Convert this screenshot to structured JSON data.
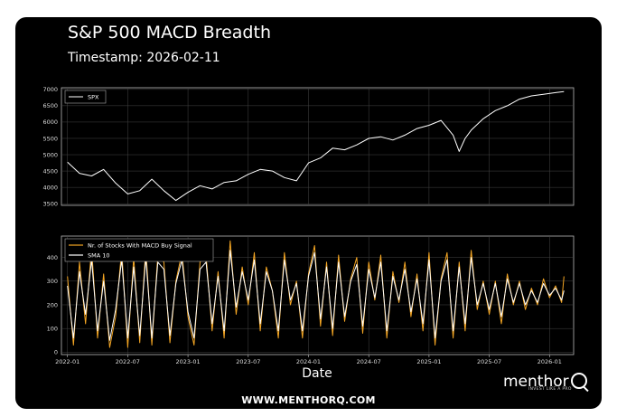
{
  "header": {
    "title": "S&P 500 MACD Breadth",
    "subtitle": "Timestamp: 2026-02-11"
  },
  "footer": {
    "url": "WWW.MENTHORQ.COM",
    "logo_text": "menthor",
    "tagline": "INVEST LIKE A PRO"
  },
  "colors": {
    "background": "#000000",
    "spx": "#ffffff",
    "signal": "#f5a623",
    "sma": "#ffffff",
    "grid": "#555555"
  },
  "chart_data": [
    {
      "type": "line",
      "title": "",
      "xlabel": "",
      "ylabel": "",
      "ylim": [
        3450,
        7050
      ],
      "yticks": [
        "3500",
        "4000",
        "4500",
        "5000",
        "5500",
        "6000",
        "6500",
        "7000"
      ],
      "legend": [
        "SPX"
      ],
      "legend_position": "top-left",
      "grid": true,
      "x": [
        2022.0,
        2022.1,
        2022.2,
        2022.3,
        2022.4,
        2022.5,
        2022.6,
        2022.7,
        2022.8,
        2022.9,
        2023.0,
        2023.1,
        2023.2,
        2023.3,
        2023.4,
        2023.5,
        2023.6,
        2023.7,
        2023.8,
        2023.9,
        2024.0,
        2024.1,
        2024.2,
        2024.3,
        2024.4,
        2024.5,
        2024.6,
        2024.7,
        2024.8,
        2024.9,
        2025.0,
        2025.1,
        2025.2,
        2025.25,
        2025.3,
        2025.35,
        2025.45,
        2025.55,
        2025.65,
        2025.75,
        2025.85,
        2025.95,
        2026.05,
        2026.12
      ],
      "series": [
        {
          "name": "SPX",
          "values": [
            4770,
            4430,
            4350,
            4550,
            4130,
            3800,
            3900,
            4250,
            3900,
            3600,
            3850,
            4050,
            3950,
            4150,
            4200,
            4400,
            4550,
            4500,
            4300,
            4200,
            4750,
            4900,
            5200,
            5150,
            5300,
            5500,
            5550,
            5450,
            5600,
            5800,
            5900,
            6050,
            5600,
            5100,
            5500,
            5750,
            6100,
            6350,
            6500,
            6700,
            6800,
            6850,
            6900,
            6930
          ]
        }
      ]
    },
    {
      "type": "line",
      "title": "",
      "xlabel": "Date",
      "ylabel": "",
      "ylim": [
        -10,
        490
      ],
      "yticks": [
        "0",
        "100",
        "200",
        "300",
        "400"
      ],
      "xticks": [
        "2022-01",
        "2022-07",
        "2023-01",
        "2023-07",
        "2024-01",
        "2024-07",
        "2025-01",
        "2025-07",
        "2026-01"
      ],
      "legend": [
        "Nr. of Stocks With MACD Buy Signal",
        "SMA 10"
      ],
      "legend_position": "top-left",
      "grid": true,
      "x": [
        2022.0,
        2022.05,
        2022.1,
        2022.15,
        2022.2,
        2022.25,
        2022.3,
        2022.35,
        2022.4,
        2022.45,
        2022.5,
        2022.55,
        2022.6,
        2022.65,
        2022.7,
        2022.75,
        2022.8,
        2022.85,
        2022.9,
        2022.95,
        2023.0,
        2023.05,
        2023.1,
        2023.15,
        2023.2,
        2023.25,
        2023.3,
        2023.35,
        2023.4,
        2023.45,
        2023.5,
        2023.55,
        2023.6,
        2023.65,
        2023.7,
        2023.75,
        2023.8,
        2023.85,
        2023.9,
        2023.95,
        2024.0,
        2024.05,
        2024.1,
        2024.15,
        2024.2,
        2024.25,
        2024.3,
        2024.35,
        2024.4,
        2024.45,
        2024.5,
        2024.55,
        2024.6,
        2024.65,
        2024.7,
        2024.75,
        2024.8,
        2024.85,
        2024.9,
        2024.95,
        2025.0,
        2025.05,
        2025.1,
        2025.15,
        2025.2,
        2025.25,
        2025.3,
        2025.35,
        2025.4,
        2025.45,
        2025.5,
        2025.55,
        2025.6,
        2025.65,
        2025.7,
        2025.75,
        2025.8,
        2025.85,
        2025.9,
        2025.95,
        2026.0,
        2026.05,
        2026.1,
        2026.12
      ],
      "series": [
        {
          "name": "Nr. of Stocks With MACD Buy Signal",
          "values": [
            320,
            30,
            380,
            120,
            440,
            60,
            330,
            20,
            150,
            430,
            20,
            400,
            40,
            440,
            30,
            410,
            380,
            40,
            300,
            420,
            150,
            30,
            380,
            410,
            90,
            340,
            60,
            470,
            160,
            360,
            200,
            420,
            90,
            360,
            260,
            60,
            420,
            200,
            300,
            60,
            330,
            450,
            110,
            380,
            70,
            410,
            130,
            310,
            400,
            80,
            380,
            220,
            410,
            60,
            340,
            210,
            380,
            150,
            330,
            90,
            420,
            30,
            310,
            420,
            60,
            380,
            90,
            430,
            180,
            300,
            160,
            300,
            120,
            330,
            200,
            300,
            180,
            270,
            200,
            310,
            230,
            280,
            210,
            320
          ]
        },
        {
          "name": "SMA 10",
          "values": [
            280,
            60,
            340,
            160,
            390,
            90,
            300,
            50,
            180,
            390,
            60,
            360,
            70,
            400,
            60,
            380,
            350,
            70,
            290,
            390,
            170,
            60,
            350,
            380,
            120,
            320,
            90,
            430,
            190,
            340,
            220,
            390,
            120,
            340,
            260,
            90,
            390,
            220,
            290,
            90,
            320,
            420,
            140,
            360,
            100,
            380,
            150,
            300,
            370,
            110,
            350,
            230,
            380,
            90,
            320,
            220,
            350,
            170,
            310,
            120,
            390,
            60,
            300,
            390,
            90,
            360,
            120,
            400,
            200,
            290,
            180,
            290,
            150,
            310,
            210,
            290,
            200,
            260,
            210,
            290,
            240,
            270,
            220,
            260
          ]
        }
      ]
    }
  ]
}
